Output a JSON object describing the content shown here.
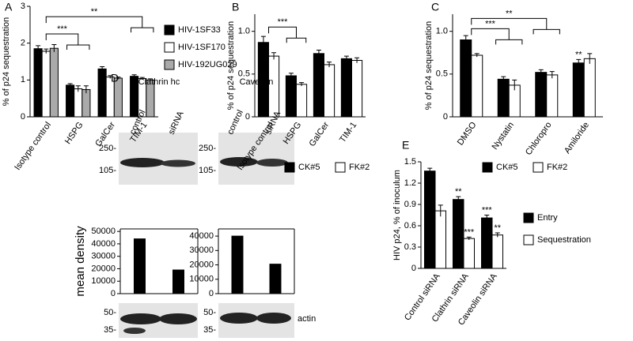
{
  "chart_data": [
    {
      "type": "bar",
      "panel": "A",
      "y_label": "% of p24 sequestration",
      "categories": [
        "Isotype control",
        "HSPG",
        "GalCer",
        "TIM-1"
      ],
      "series": [
        {
          "name": "HIV-1SF33",
          "color": "#000000",
          "values": [
            1.85,
            0.86,
            1.3,
            1.1
          ],
          "errors": [
            0.08,
            0.04,
            0.06,
            0.04
          ]
        },
        {
          "name": "HIV-1SF170",
          "color": "#ffffff",
          "values": [
            1.78,
            0.76,
            1.08,
            1.04
          ],
          "errors": [
            0.06,
            0.08,
            0.04,
            0.03
          ]
        },
        {
          "name": "HIV-192UG029",
          "color": "#aaaaaa",
          "values": [
            1.86,
            0.74,
            1.05,
            1.0
          ],
          "errors": [
            0.1,
            0.1,
            0.03,
            0.03
          ]
        }
      ],
      "ylim": [
        0,
        3
      ],
      "yticks": [
        0,
        1,
        2,
        3
      ],
      "annotations": [
        "***",
        "**"
      ],
      "legend": "right"
    },
    {
      "type": "bar",
      "panel": "B",
      "y_label": "% of p24 sequestration",
      "categories": [
        "Isotype control",
        "HSPG",
        "GalCer",
        "TIM-1"
      ],
      "series": [
        {
          "name": "CK#5",
          "color": "#000000",
          "values": [
            0.87,
            0.48,
            0.74,
            0.68
          ],
          "errors": [
            0.07,
            0.03,
            0.04,
            0.03
          ]
        },
        {
          "name": "FK#2",
          "color": "#ffffff",
          "values": [
            0.71,
            0.38,
            0.61,
            0.66
          ],
          "errors": [
            0.04,
            0.02,
            0.03,
            0.03
          ]
        }
      ],
      "ylim": [
        0,
        1.2
      ],
      "yticks": [
        0,
        0.5,
        {
          "value": 1,
          "label": "1.0"
        }
      ],
      "annotations": [
        "***"
      ],
      "legend": "bottom"
    },
    {
      "type": "bar",
      "panel": "C",
      "y_label": "% of p24 sequestration",
      "categories": [
        "DMSO",
        "Nystatin",
        "Chloropro",
        "Amiloride"
      ],
      "series": [
        {
          "name": "CK#5",
          "color": "#000000",
          "values": [
            0.9,
            0.44,
            0.52,
            0.63
          ],
          "errors": [
            0.05,
            0.03,
            0.03,
            0.04
          ],
          "significance": [
            null,
            null,
            null,
            "**"
          ]
        },
        {
          "name": "FK#2",
          "color": "#ffffff",
          "values": [
            0.72,
            0.37,
            0.49,
            0.68
          ],
          "errors": [
            0.02,
            0.06,
            0.04,
            0.06
          ]
        }
      ],
      "ylim": [
        0,
        1.2
      ],
      "yticks": [
        0,
        0.5,
        {
          "value": 1,
          "label": "1.0"
        }
      ],
      "annotations": [
        "***",
        "**"
      ],
      "legend": "bottom"
    },
    {
      "type": "bar",
      "panel": "D",
      "title": "Clathrin hc",
      "y_label": "mean density",
      "categories": [
        "control",
        "siRNA"
      ],
      "series": [
        {
          "color": "#000000",
          "values": [
            44000,
            19000
          ]
        }
      ],
      "ylim": [
        0,
        52000
      ],
      "yticks": [
        0,
        10000,
        20000,
        30000,
        40000,
        50000
      ]
    },
    {
      "type": "bar",
      "title": "Caveolin",
      "categories": [
        "control",
        "siRNA"
      ],
      "series": [
        {
          "color": "#000000",
          "values": [
            40000,
            20500
          ]
        }
      ],
      "ylim": [
        0,
        45000
      ],
      "yticks": [
        0,
        10000,
        20000,
        30000,
        40000
      ]
    },
    {
      "type": "bar",
      "panel": "E",
      "y_label": "HIV p24, % of inoculum",
      "categories": [
        "Control siRNA",
        "Clathrin siRNA",
        "Caveolin siRNA"
      ],
      "series": [
        {
          "name": "Entry",
          "color": "#000000",
          "values": [
            1.37,
            0.97,
            0.71
          ],
          "errors": [
            0.04,
            0.04,
            0.04
          ],
          "significance": [
            null,
            "**",
            "***"
          ]
        },
        {
          "name": "Sequestration",
          "color": "#ffffff",
          "values": [
            0.81,
            0.42,
            0.47
          ],
          "errors": [
            0.08,
            0.02,
            0.03
          ],
          "significance": [
            null,
            "***",
            "**"
          ]
        }
      ],
      "ylim": [
        0,
        1.5
      ],
      "yticks": [
        0,
        0.3,
        0.6,
        0.9,
        1.2,
        1.5
      ],
      "legend": "right"
    }
  ],
  "blots": {
    "upper_markers": [
      "250-",
      "105-"
    ],
    "lower_markers": [
      "50-",
      "35-"
    ],
    "loading_control": "actin"
  }
}
